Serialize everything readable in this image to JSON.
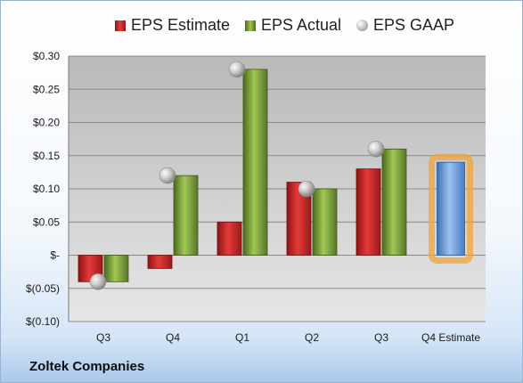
{
  "legend": {
    "estimate_label": "EPS Estimate",
    "actual_label": "EPS Actual",
    "gaap_label": "EPS GAAP"
  },
  "company_name": "Zoltek Companies",
  "colors": {
    "estimate": "#d42a2a",
    "actual": "#8ab23c",
    "gaap": "#a6a6a6",
    "forecast": "#6f9fe0",
    "forecast_glow": "#f3a33a",
    "plot_bg": "#c8c8c8"
  },
  "chart_data": {
    "type": "bar",
    "categories": [
      "Q3",
      "Q4",
      "Q1",
      "Q2",
      "Q3",
      "Q4 Estimate"
    ],
    "series": [
      {
        "name": "EPS Estimate",
        "values": [
          -0.04,
          -0.02,
          0.05,
          0.11,
          0.13,
          null
        ]
      },
      {
        "name": "EPS Actual",
        "values": [
          -0.04,
          0.12,
          0.28,
          0.1,
          0.16,
          null
        ]
      },
      {
        "name": "EPS GAAP",
        "values": [
          -0.04,
          0.12,
          0.28,
          0.1,
          0.16,
          null
        ]
      }
    ],
    "forecast": {
      "category": "Q4 Estimate",
      "value": 0.14
    },
    "y_ticks": [
      {
        "value": 0.3,
        "label": "$0.30"
      },
      {
        "value": 0.25,
        "label": "$0.25"
      },
      {
        "value": 0.2,
        "label": "$0.20"
      },
      {
        "value": 0.15,
        "label": "$0.15"
      },
      {
        "value": 0.1,
        "label": "$0.10"
      },
      {
        "value": 0.05,
        "label": "$0.05"
      },
      {
        "value": 0.0,
        "label": "$-"
      },
      {
        "value": -0.05,
        "label": "$(0.05)"
      },
      {
        "value": -0.1,
        "label": "$(0.10)"
      }
    ],
    "ylim": [
      -0.1,
      0.3
    ],
    "grid": true,
    "legend_position": "top"
  }
}
